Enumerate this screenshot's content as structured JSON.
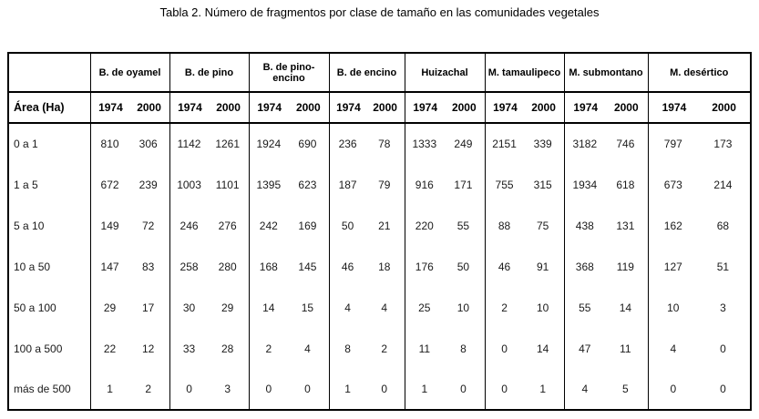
{
  "title": "Tabla 2. Número de fragmentos por clase de tamaño en las comunidades vegetales",
  "table": {
    "area_label": "Área (Ha)",
    "years": [
      "1974",
      "2000"
    ],
    "groups": [
      "B. de oyamel",
      "B. de pino",
      "B. de pino-encino",
      "B. de encino",
      "Huizachal",
      "M. tamaulipeco",
      "M. submontano",
      "M. desértico"
    ],
    "rows": [
      {
        "label": "0 a 1",
        "values": [
          810,
          306,
          1142,
          1261,
          1924,
          690,
          236,
          78,
          1333,
          249,
          2151,
          339,
          3182,
          746,
          797,
          173
        ]
      },
      {
        "label": "1 a 5",
        "values": [
          672,
          239,
          1003,
          1101,
          1395,
          623,
          187,
          79,
          916,
          171,
          755,
          315,
          1934,
          618,
          673,
          214
        ]
      },
      {
        "label": "5 a 10",
        "values": [
          149,
          72,
          246,
          276,
          242,
          169,
          50,
          21,
          220,
          55,
          88,
          75,
          438,
          131,
          162,
          68
        ]
      },
      {
        "label": "10 a 50",
        "values": [
          147,
          83,
          258,
          280,
          168,
          145,
          46,
          18,
          176,
          50,
          46,
          91,
          368,
          119,
          127,
          51
        ]
      },
      {
        "label": "50 a 100",
        "values": [
          29,
          17,
          30,
          29,
          14,
          15,
          4,
          4,
          25,
          10,
          2,
          10,
          55,
          14,
          10,
          3
        ]
      },
      {
        "label": "100 a 500",
        "values": [
          22,
          12,
          33,
          28,
          2,
          4,
          8,
          2,
          11,
          8,
          0,
          14,
          47,
          11,
          4,
          0
        ]
      },
      {
        "label": "más de 500",
        "values": [
          1,
          2,
          0,
          3,
          0,
          0,
          1,
          0,
          1,
          0,
          0,
          1,
          4,
          5,
          0,
          0
        ]
      }
    ]
  }
}
